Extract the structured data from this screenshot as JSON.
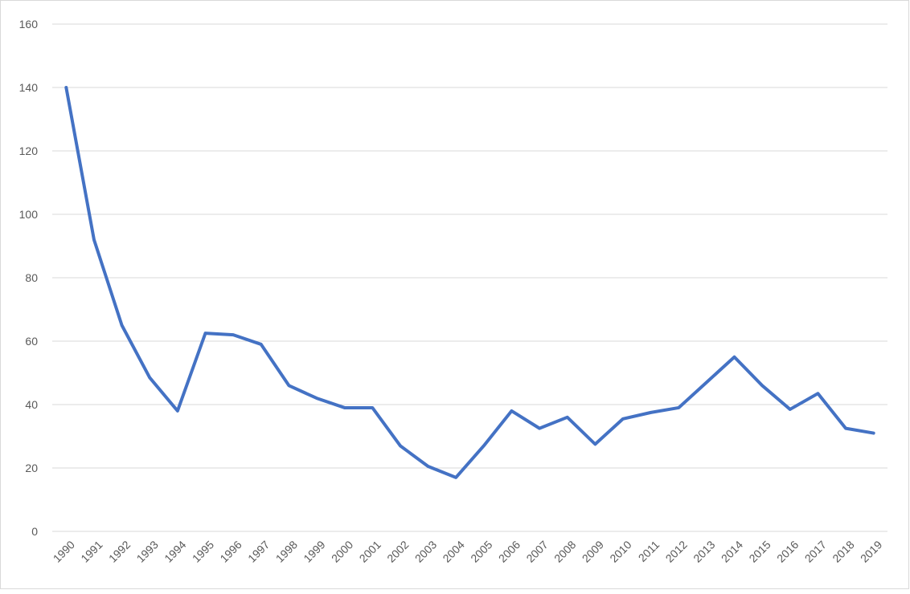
{
  "chart_data": {
    "type": "line",
    "categories": [
      "1990",
      "1991",
      "1992",
      "1993",
      "1994",
      "1995",
      "1996",
      "1997",
      "1998",
      "1999",
      "2000",
      "2001",
      "2002",
      "2003",
      "2004",
      "2005",
      "2006",
      "2007",
      "2008",
      "2009",
      "2010",
      "2011",
      "2012",
      "2013",
      "2014",
      "2015",
      "2016",
      "2017",
      "2018",
      "2019"
    ],
    "values": [
      140,
      92,
      65,
      48.5,
      38,
      62.5,
      62,
      59,
      46,
      42,
      39,
      39,
      27,
      20.5,
      17,
      27,
      38,
      32.5,
      36,
      27.5,
      35.5,
      37.5,
      39,
      47,
      55,
      46,
      38.5,
      43.5,
      32.5,
      31
    ],
    "color": "#4472c4",
    "ylim": [
      0,
      160
    ],
    "yticks": [
      0,
      20,
      40,
      60,
      80,
      100,
      120,
      140,
      160
    ],
    "grid": true
  }
}
